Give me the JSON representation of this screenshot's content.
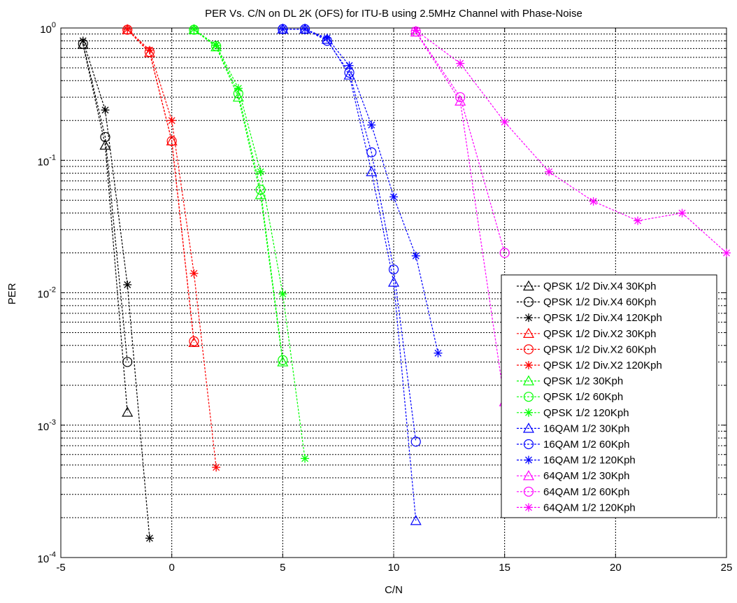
{
  "chart_data": {
    "type": "line",
    "title": "PER Vs. C/N on DL 2K (OFS) for ITU-B using 2.5MHz Channel with Phase-Noise",
    "xlabel": "C/N",
    "ylabel": "PER",
    "xlim": [
      -5,
      25
    ],
    "ylim": [
      0.0001,
      1
    ],
    "yscale": "log",
    "grid": "major and minor (dashed)",
    "legend_position": "bottom-right inside",
    "x_ticks": [
      {
        "value": -5,
        "label": "-5"
      },
      {
        "value": 0,
        "label": "0"
      },
      {
        "value": 5,
        "label": "5"
      },
      {
        "value": 10,
        "label": "10"
      },
      {
        "value": 15,
        "label": "15"
      },
      {
        "value": 20,
        "label": "20"
      },
      {
        "value": 25,
        "label": "25"
      }
    ],
    "y_ticks": [
      {
        "value": 1,
        "base": "10",
        "exp": "0"
      },
      {
        "value": 0.1,
        "base": "10",
        "exp": "-1"
      },
      {
        "value": 0.01,
        "base": "10",
        "exp": "-2"
      },
      {
        "value": 0.001,
        "base": "10",
        "exp": "-3"
      },
      {
        "value": 0.0001,
        "base": "10",
        "exp": "-4"
      }
    ],
    "series": [
      {
        "name": "QPSK 1/2 Div.X4 30Kph",
        "color": "#000000",
        "marker": "triangle",
        "x": [
          -4,
          -3,
          -2
        ],
        "y": [
          0.75,
          0.13,
          0.00125
        ]
      },
      {
        "name": "QPSK 1/2 Div.X4 60Kph",
        "color": "#000000",
        "marker": "circle",
        "x": [
          -4,
          -3,
          -2
        ],
        "y": [
          0.76,
          0.15,
          0.003
        ]
      },
      {
        "name": "QPSK 1/2 Div.X4 120Kph",
        "color": "#000000",
        "marker": "star",
        "x": [
          -4,
          -3,
          -2,
          -1
        ],
        "y": [
          0.8,
          0.24,
          0.0115,
          0.00014
        ]
      },
      {
        "name": "QPSK 1/2 Div.X2 30Kph",
        "color": "#ff0000",
        "marker": "triangle",
        "x": [
          -2,
          -1,
          0,
          1
        ],
        "y": [
          0.97,
          0.65,
          0.14,
          0.0042
        ]
      },
      {
        "name": "QPSK 1/2 Div.X2 60Kph",
        "color": "#ff0000",
        "marker": "circle",
        "x": [
          -2,
          -1,
          0,
          1
        ],
        "y": [
          0.97,
          0.66,
          0.14,
          0.0043
        ]
      },
      {
        "name": "QPSK 1/2 Div.X2 120Kph",
        "color": "#ff0000",
        "marker": "star",
        "x": [
          -2,
          -1,
          0,
          1,
          2
        ],
        "y": [
          0.98,
          0.68,
          0.2,
          0.014,
          0.00048
        ]
      },
      {
        "name": "QPSK 1/2 30Kph",
        "color": "#00ff00",
        "marker": "triangle",
        "x": [
          1,
          2,
          3,
          4,
          5
        ],
        "y": [
          0.97,
          0.72,
          0.3,
          0.055,
          0.003
        ]
      },
      {
        "name": "QPSK 1/2 60Kph",
        "color": "#00ff00",
        "marker": "circle",
        "x": [
          1,
          2,
          3,
          4,
          5
        ],
        "y": [
          0.97,
          0.73,
          0.32,
          0.06,
          0.0031
        ]
      },
      {
        "name": "QPSK 1/2 120Kph",
        "color": "#00ff00",
        "marker": "star",
        "x": [
          1,
          2,
          3,
          4,
          5,
          6
        ],
        "y": [
          0.98,
          0.74,
          0.35,
          0.082,
          0.0098,
          0.00056
        ]
      },
      {
        "name": "16QAM 1/2 30Kph",
        "color": "#0000ff",
        "marker": "triangle",
        "x": [
          5,
          6,
          7,
          8,
          9,
          10,
          11
        ],
        "y": [
          0.98,
          0.98,
          0.82,
          0.44,
          0.082,
          0.012,
          0.00019
        ]
      },
      {
        "name": "16QAM 1/2 60Kph",
        "color": "#0000ff",
        "marker": "circle",
        "x": [
          5,
          6,
          7,
          8,
          9,
          10,
          11
        ],
        "y": [
          0.98,
          0.98,
          0.8,
          0.46,
          0.115,
          0.015,
          0.00075
        ]
      },
      {
        "name": "16QAM 1/2 120Kph",
        "color": "#0000ff",
        "marker": "star",
        "x": [
          5,
          6,
          7,
          8,
          9,
          10,
          11,
          12
        ],
        "y": [
          0.98,
          0.98,
          0.84,
          0.52,
          0.185,
          0.053,
          0.019,
          0.0035
        ]
      },
      {
        "name": "64QAM 1/2 30Kph",
        "color": "#ff00ff",
        "marker": "triangle",
        "x": [
          11,
          13,
          15
        ],
        "y": [
          0.93,
          0.28,
          0.0015
        ]
      },
      {
        "name": "64QAM 1/2 60Kph",
        "color": "#ff00ff",
        "marker": "circle",
        "x": [
          11,
          13,
          15
        ],
        "y": [
          0.94,
          0.3,
          0.02
        ]
      },
      {
        "name": "64QAM 1/2 120Kph",
        "color": "#ff00ff",
        "marker": "star",
        "x": [
          11,
          13,
          15,
          17,
          19,
          21,
          23,
          25
        ],
        "y": [
          0.96,
          0.54,
          0.195,
          0.082,
          0.049,
          0.035,
          0.04,
          0.02
        ]
      }
    ]
  }
}
